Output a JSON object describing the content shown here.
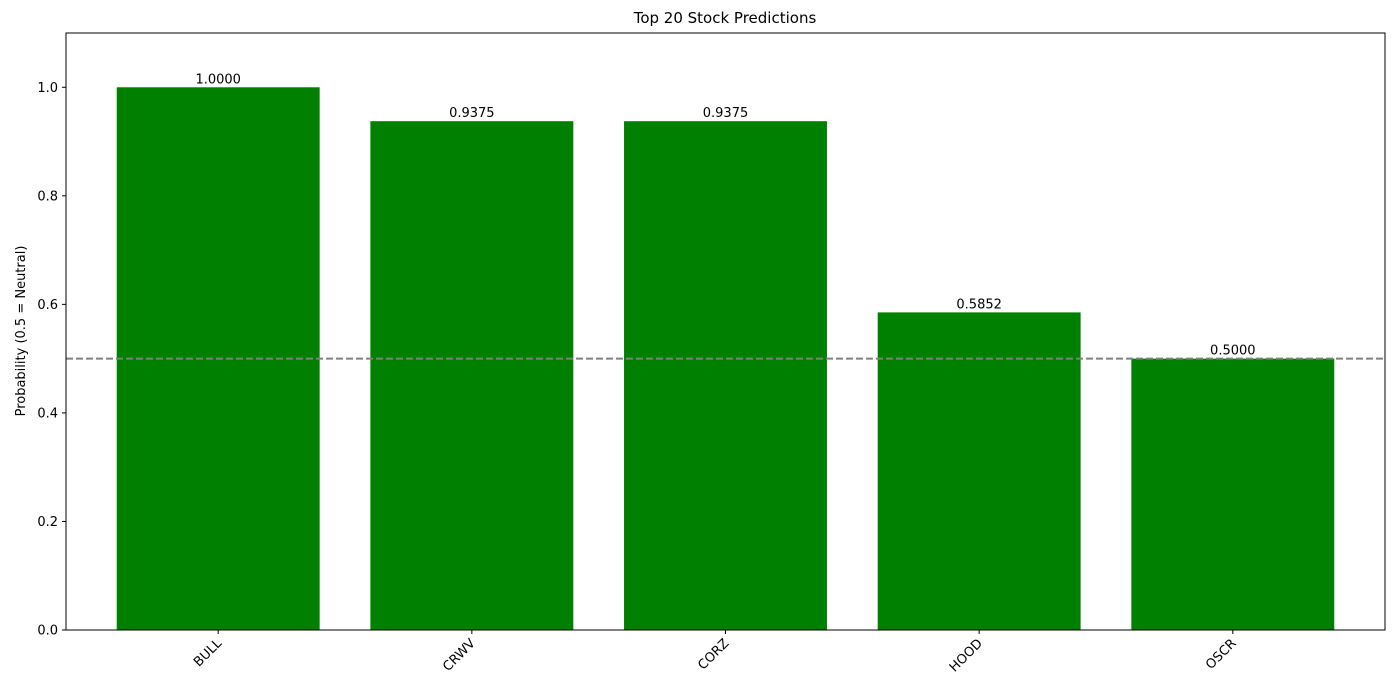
{
  "chart_data": {
    "type": "bar",
    "title": "Top 20 Stock Predictions",
    "xlabel": "",
    "ylabel": "Probability (0.5 = Neutral)",
    "categories": [
      "BULL",
      "CRWV",
      "CORZ",
      "HOOD",
      "OSCR"
    ],
    "values": [
      1.0,
      0.9375,
      0.9375,
      0.5852,
      0.5
    ],
    "value_labels": [
      "1.0000",
      "0.9375",
      "0.9375",
      "0.5852",
      "0.5000"
    ],
    "ylim": [
      0,
      1.1
    ],
    "yticks": [
      0.0,
      0.2,
      0.4,
      0.6,
      0.8,
      1.0
    ],
    "ytick_labels": [
      "0.0",
      "0.2",
      "0.4",
      "0.6",
      "0.8",
      "1.0"
    ],
    "reference_line": {
      "y": 0.5,
      "style": "dashed",
      "color": "#808080"
    },
    "bar_color": "#008000",
    "grid": false,
    "legend": "none",
    "xtick_rotation_deg": 45
  }
}
